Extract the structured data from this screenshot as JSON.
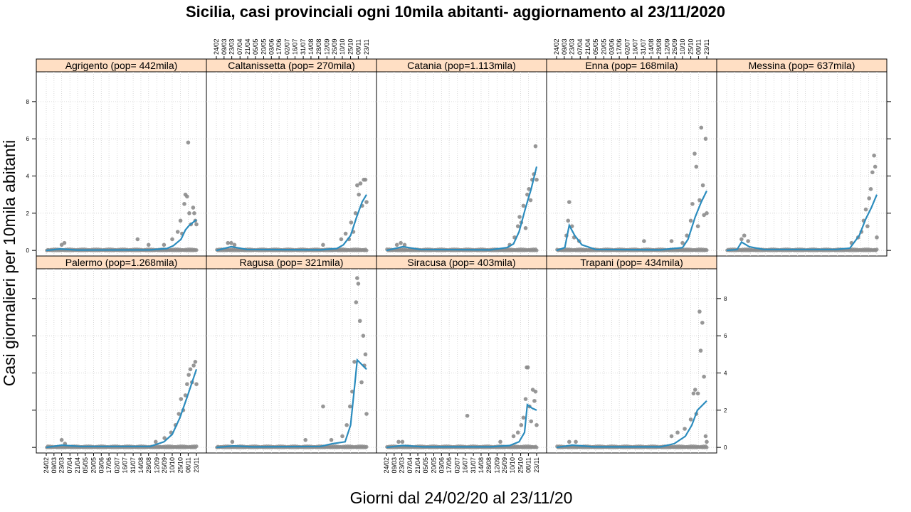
{
  "colors": {
    "strip": "#ffdfc4",
    "points": "#8c8c8c",
    "line": "#2b8cbe",
    "grid": "#d0d0d0"
  },
  "chart_data": {
    "type": "scatter",
    "title": "Sicilia, casi provinciali ogni 10mila abitanti- aggiornamento al 23/11/2020",
    "xlabel": "Giorni dal 24/02/20 al 23/11/20",
    "ylabel": "Casi giornalieri per 10mila abitanti",
    "x_range": [
      "2020-02-24",
      "2020-11-23"
    ],
    "ylim": [
      -0.3,
      9.6
    ],
    "y_ticks": [
      0,
      2,
      4,
      6,
      8
    ],
    "x_ticks": [
      "24/02",
      "09/03",
      "23/03",
      "07/04",
      "21/04",
      "05/05",
      "20/05",
      "03/06",
      "17/06",
      "02/07",
      "16/07",
      "31/07",
      "14/08",
      "28/08",
      "12/09",
      "26/09",
      "10/10",
      "25/10",
      "08/11",
      "23/11"
    ],
    "grid": true,
    "layout": "5 columns x 2 rows",
    "panels": [
      {
        "name": "Agrigento (pop=  442mila)",
        "row": 0,
        "col": 0,
        "smooth": [
          [
            "2020-02-24",
            0
          ],
          [
            "2020-03-20",
            0.08
          ],
          [
            "2020-04-20",
            0.02
          ],
          [
            "2020-08-31",
            0.03
          ],
          [
            "2020-09-30",
            0.1
          ],
          [
            "2020-10-12",
            0.25
          ],
          [
            "2020-10-26",
            0.6
          ],
          [
            "2020-11-03",
            1.1
          ],
          [
            "2020-11-10",
            1.35
          ],
          [
            "2020-11-23",
            1.65
          ]
        ],
        "points": [
          [
            "2020-03-23",
            0.3
          ],
          [
            "2020-03-28",
            0.4
          ],
          [
            "2020-08-08",
            0.6
          ],
          [
            "2020-08-28",
            0.3
          ],
          [
            "2020-09-25",
            0.3
          ],
          [
            "2020-10-10",
            0.6
          ],
          [
            "2020-10-20",
            1.0
          ],
          [
            "2020-10-25",
            1.6
          ],
          [
            "2020-10-28",
            0.9
          ],
          [
            "2020-11-01",
            2.5
          ],
          [
            "2020-11-03",
            3.0
          ],
          [
            "2020-11-06",
            2.9
          ],
          [
            "2020-11-08",
            5.8
          ],
          [
            "2020-11-10",
            2.0
          ],
          [
            "2020-11-13",
            1.4
          ],
          [
            "2020-11-17",
            2.3
          ],
          [
            "2020-11-19",
            2.0
          ],
          [
            "2020-11-21",
            1.6
          ],
          [
            "2020-11-23",
            1.4
          ]
        ]
      },
      {
        "name": "Caltanissetta (pop=  270mila)",
        "row": 0,
        "col": 1,
        "smooth": [
          [
            "2020-02-24",
            0
          ],
          [
            "2020-03-22",
            0.2
          ],
          [
            "2020-04-20",
            0.05
          ],
          [
            "2020-08-31",
            0.03
          ],
          [
            "2020-09-30",
            0.1
          ],
          [
            "2020-10-12",
            0.3
          ],
          [
            "2020-10-25",
            0.8
          ],
          [
            "2020-11-05",
            1.8
          ],
          [
            "2020-11-15",
            2.6
          ],
          [
            "2020-11-23",
            3.0
          ]
        ],
        "points": [
          [
            "2020-03-16",
            0.4
          ],
          [
            "2020-03-22",
            0.4
          ],
          [
            "2020-03-28",
            0.3
          ],
          [
            "2020-09-05",
            0.3
          ],
          [
            "2020-10-08",
            0.6
          ],
          [
            "2020-10-16",
            0.9
          ],
          [
            "2020-10-22",
            0.6
          ],
          [
            "2020-10-26",
            1.5
          ],
          [
            "2020-10-30",
            1.0
          ],
          [
            "2020-11-03",
            2.0
          ],
          [
            "2020-11-06",
            3.5
          ],
          [
            "2020-11-09",
            3.0
          ],
          [
            "2020-11-12",
            3.6
          ],
          [
            "2020-11-15",
            2.4
          ],
          [
            "2020-11-18",
            3.8
          ],
          [
            "2020-11-21",
            3.8
          ],
          [
            "2020-11-23",
            2.6
          ]
        ]
      },
      {
        "name": "Catania (pop=1.113mila)",
        "row": 0,
        "col": 2,
        "smooth": [
          [
            "2020-02-24",
            0
          ],
          [
            "2020-03-25",
            0.2
          ],
          [
            "2020-04-25",
            0.05
          ],
          [
            "2020-08-31",
            0.03
          ],
          [
            "2020-09-30",
            0.15
          ],
          [
            "2020-10-12",
            0.35
          ],
          [
            "2020-10-22",
            1.0
          ],
          [
            "2020-11-03",
            2.3
          ],
          [
            "2020-11-13",
            3.3
          ],
          [
            "2020-11-23",
            4.5
          ]
        ],
        "points": [
          [
            "2020-03-14",
            0.3
          ],
          [
            "2020-03-21",
            0.4
          ],
          [
            "2020-03-28",
            0.3
          ],
          [
            "2020-10-05",
            0.3
          ],
          [
            "2020-10-14",
            0.7
          ],
          [
            "2020-10-20",
            1.3
          ],
          [
            "2020-10-23",
            1.8
          ],
          [
            "2020-10-26",
            1.5
          ],
          [
            "2020-10-30",
            2.4
          ],
          [
            "2020-11-03",
            1.2
          ],
          [
            "2020-11-06",
            3.0
          ],
          [
            "2020-11-09",
            3.3
          ],
          [
            "2020-11-12",
            2.7
          ],
          [
            "2020-11-15",
            3.8
          ],
          [
            "2020-11-18",
            4.1
          ],
          [
            "2020-11-21",
            5.6
          ],
          [
            "2020-11-23",
            3.8
          ]
        ]
      },
      {
        "name": "Enna (pop=  168mila)",
        "row": 0,
        "col": 3,
        "smooth": [
          [
            "2020-02-24",
            0
          ],
          [
            "2020-03-10",
            0.15
          ],
          [
            "2020-03-18",
            1.35
          ],
          [
            "2020-03-28",
            0.8
          ],
          [
            "2020-04-10",
            0.3
          ],
          [
            "2020-05-05",
            0.05
          ],
          [
            "2020-08-31",
            0.03
          ],
          [
            "2020-10-10",
            0.15
          ],
          [
            "2020-10-20",
            0.6
          ],
          [
            "2020-11-02",
            1.8
          ],
          [
            "2020-11-13",
            2.6
          ],
          [
            "2020-11-23",
            3.2
          ]
        ],
        "points": [
          [
            "2020-03-13",
            0.8
          ],
          [
            "2020-03-16",
            1.6
          ],
          [
            "2020-03-18",
            2.6
          ],
          [
            "2020-03-23",
            1.3
          ],
          [
            "2020-03-27",
            0.7
          ],
          [
            "2020-04-05",
            0.5
          ],
          [
            "2020-08-01",
            0.5
          ],
          [
            "2020-09-20",
            0.5
          ],
          [
            "2020-10-10",
            0.4
          ],
          [
            "2020-10-18",
            0.8
          ],
          [
            "2020-10-25",
            1.6
          ],
          [
            "2020-10-28",
            2.5
          ],
          [
            "2020-11-01",
            5.2
          ],
          [
            "2020-11-04",
            4.5
          ],
          [
            "2020-11-07",
            1.3
          ],
          [
            "2020-11-10",
            2.7
          ],
          [
            "2020-11-13",
            6.6
          ],
          [
            "2020-11-16",
            3.5
          ],
          [
            "2020-11-18",
            1.9
          ],
          [
            "2020-11-21",
            6.0
          ],
          [
            "2020-11-23",
            2.0
          ]
        ]
      },
      {
        "name": "Messina (pop=  637mila)",
        "row": 0,
        "col": 4,
        "smooth": [
          [
            "2020-02-24",
            0
          ],
          [
            "2020-03-14",
            0.05
          ],
          [
            "2020-03-22",
            0.45
          ],
          [
            "2020-04-05",
            0.2
          ],
          [
            "2020-05-01",
            0.05
          ],
          [
            "2020-09-10",
            0.05
          ],
          [
            "2020-10-05",
            0.12
          ],
          [
            "2020-10-22",
            0.8
          ],
          [
            "2020-11-03",
            1.7
          ],
          [
            "2020-11-13",
            2.3
          ],
          [
            "2020-11-23",
            3.0
          ]
        ],
        "points": [
          [
            "2020-03-22",
            0.6
          ],
          [
            "2020-03-27",
            0.8
          ],
          [
            "2020-04-03",
            0.5
          ],
          [
            "2020-10-08",
            0.4
          ],
          [
            "2020-10-20",
            0.7
          ],
          [
            "2020-10-26",
            1.0
          ],
          [
            "2020-10-30",
            1.6
          ],
          [
            "2020-11-03",
            2.2
          ],
          [
            "2020-11-06",
            1.3
          ],
          [
            "2020-11-09",
            2.8
          ],
          [
            "2020-11-12",
            3.3
          ],
          [
            "2020-11-15",
            4.2
          ],
          [
            "2020-11-18",
            5.1
          ],
          [
            "2020-11-20",
            4.5
          ],
          [
            "2020-11-23",
            0.7
          ]
        ]
      },
      {
        "name": "Palermo (pop=1.268mila)",
        "row": 1,
        "col": 0,
        "smooth": [
          [
            "2020-02-24",
            0
          ],
          [
            "2020-03-24",
            0.12
          ],
          [
            "2020-04-25",
            0.05
          ],
          [
            "2020-08-31",
            0.05
          ],
          [
            "2020-09-25",
            0.3
          ],
          [
            "2020-10-10",
            0.7
          ],
          [
            "2020-10-24",
            1.6
          ],
          [
            "2020-11-06",
            2.7
          ],
          [
            "2020-11-23",
            4.2
          ]
        ],
        "points": [
          [
            "2020-03-23",
            0.4
          ],
          [
            "2020-03-29",
            0.2
          ],
          [
            "2020-09-10",
            0.3
          ],
          [
            "2020-09-26",
            0.5
          ],
          [
            "2020-10-08",
            0.8
          ],
          [
            "2020-10-16",
            1.2
          ],
          [
            "2020-10-22",
            1.8
          ],
          [
            "2020-10-26",
            2.6
          ],
          [
            "2020-10-30",
            2.0
          ],
          [
            "2020-11-03",
            2.8
          ],
          [
            "2020-11-06",
            3.4
          ],
          [
            "2020-11-09",
            3.9
          ],
          [
            "2020-11-12",
            4.2
          ],
          [
            "2020-11-15",
            3.5
          ],
          [
            "2020-11-18",
            4.4
          ],
          [
            "2020-11-21",
            4.6
          ],
          [
            "2020-11-23",
            3.4
          ]
        ]
      },
      {
        "name": "Ragusa (pop=  321mila)",
        "row": 1,
        "col": 1,
        "smooth": [
          [
            "2020-02-24",
            0
          ],
          [
            "2020-03-26",
            0.08
          ],
          [
            "2020-05-01",
            0.03
          ],
          [
            "2020-08-31",
            0.05
          ],
          [
            "2020-09-22",
            0.2
          ],
          [
            "2020-10-15",
            0.3
          ],
          [
            "2020-10-25",
            1.2
          ],
          [
            "2020-11-02",
            3.5
          ],
          [
            "2020-11-06",
            4.7
          ],
          [
            "2020-11-23",
            4.2
          ]
        ],
        "points": [
          [
            "2020-03-24",
            0.3
          ],
          [
            "2020-08-04",
            0.4
          ],
          [
            "2020-09-05",
            2.2
          ],
          [
            "2020-09-20",
            0.4
          ],
          [
            "2020-10-10",
            0.6
          ],
          [
            "2020-10-18",
            1.2
          ],
          [
            "2020-10-24",
            2.2
          ],
          [
            "2020-10-28",
            3.0
          ],
          [
            "2020-11-01",
            4.6
          ],
          [
            "2020-11-04",
            7.8
          ],
          [
            "2020-11-06",
            9.1
          ],
          [
            "2020-11-08",
            8.8
          ],
          [
            "2020-11-11",
            6.8
          ],
          [
            "2020-11-14",
            3.5
          ],
          [
            "2020-11-17",
            6.0
          ],
          [
            "2020-11-19",
            4.4
          ],
          [
            "2020-11-21",
            5.0
          ],
          [
            "2020-11-23",
            1.8
          ]
        ]
      },
      {
        "name": "Siracusa (pop=  403mila)",
        "row": 1,
        "col": 2,
        "smooth": [
          [
            "2020-02-24",
            0
          ],
          [
            "2020-03-24",
            0.1
          ],
          [
            "2020-05-01",
            0.03
          ],
          [
            "2020-08-31",
            0.03
          ],
          [
            "2020-10-05",
            0.1
          ],
          [
            "2020-10-22",
            0.3
          ],
          [
            "2020-11-01",
            0.8
          ],
          [
            "2020-11-06",
            2.3
          ],
          [
            "2020-11-15",
            2.1
          ],
          [
            "2020-11-23",
            2.0
          ]
        ],
        "points": [
          [
            "2020-03-17",
            0.3
          ],
          [
            "2020-03-24",
            0.3
          ],
          [
            "2020-07-20",
            1.7
          ],
          [
            "2020-09-18",
            0.3
          ],
          [
            "2020-10-12",
            0.6
          ],
          [
            "2020-10-20",
            0.8
          ],
          [
            "2020-10-26",
            1.2
          ],
          [
            "2020-10-30",
            1.6
          ],
          [
            "2020-11-03",
            2.6
          ],
          [
            "2020-11-05",
            4.3
          ],
          [
            "2020-11-07",
            4.3
          ],
          [
            "2020-11-10",
            2.2
          ],
          [
            "2020-11-13",
            1.4
          ],
          [
            "2020-11-16",
            3.1
          ],
          [
            "2020-11-19",
            2.5
          ],
          [
            "2020-11-21",
            3.0
          ],
          [
            "2020-11-23",
            1.2
          ]
        ]
      },
      {
        "name": "Trapani (pop=  434mila)",
        "row": 1,
        "col": 3,
        "smooth": [
          [
            "2020-02-24",
            0
          ],
          [
            "2020-03-24",
            0.12
          ],
          [
            "2020-05-01",
            0.03
          ],
          [
            "2020-08-31",
            0.03
          ],
          [
            "2020-09-25",
            0.2
          ],
          [
            "2020-10-15",
            0.6
          ],
          [
            "2020-10-27",
            1.2
          ],
          [
            "2020-11-06",
            2.0
          ],
          [
            "2020-11-23",
            2.5
          ]
        ],
        "points": [
          [
            "2020-03-18",
            0.3
          ],
          [
            "2020-03-30",
            0.3
          ],
          [
            "2020-09-20",
            0.6
          ],
          [
            "2020-10-01",
            0.8
          ],
          [
            "2020-10-14",
            1.0
          ],
          [
            "2020-10-25",
            1.5
          ],
          [
            "2020-10-30",
            2.9
          ],
          [
            "2020-11-02",
            3.1
          ],
          [
            "2020-11-04",
            1.8
          ],
          [
            "2020-11-07",
            2.9
          ],
          [
            "2020-11-10",
            7.3
          ],
          [
            "2020-11-12",
            5.2
          ],
          [
            "2020-11-15",
            6.7
          ],
          [
            "2020-11-18",
            3.8
          ],
          [
            "2020-11-21",
            0.6
          ],
          [
            "2020-11-23",
            0.3
          ]
        ]
      }
    ]
  }
}
